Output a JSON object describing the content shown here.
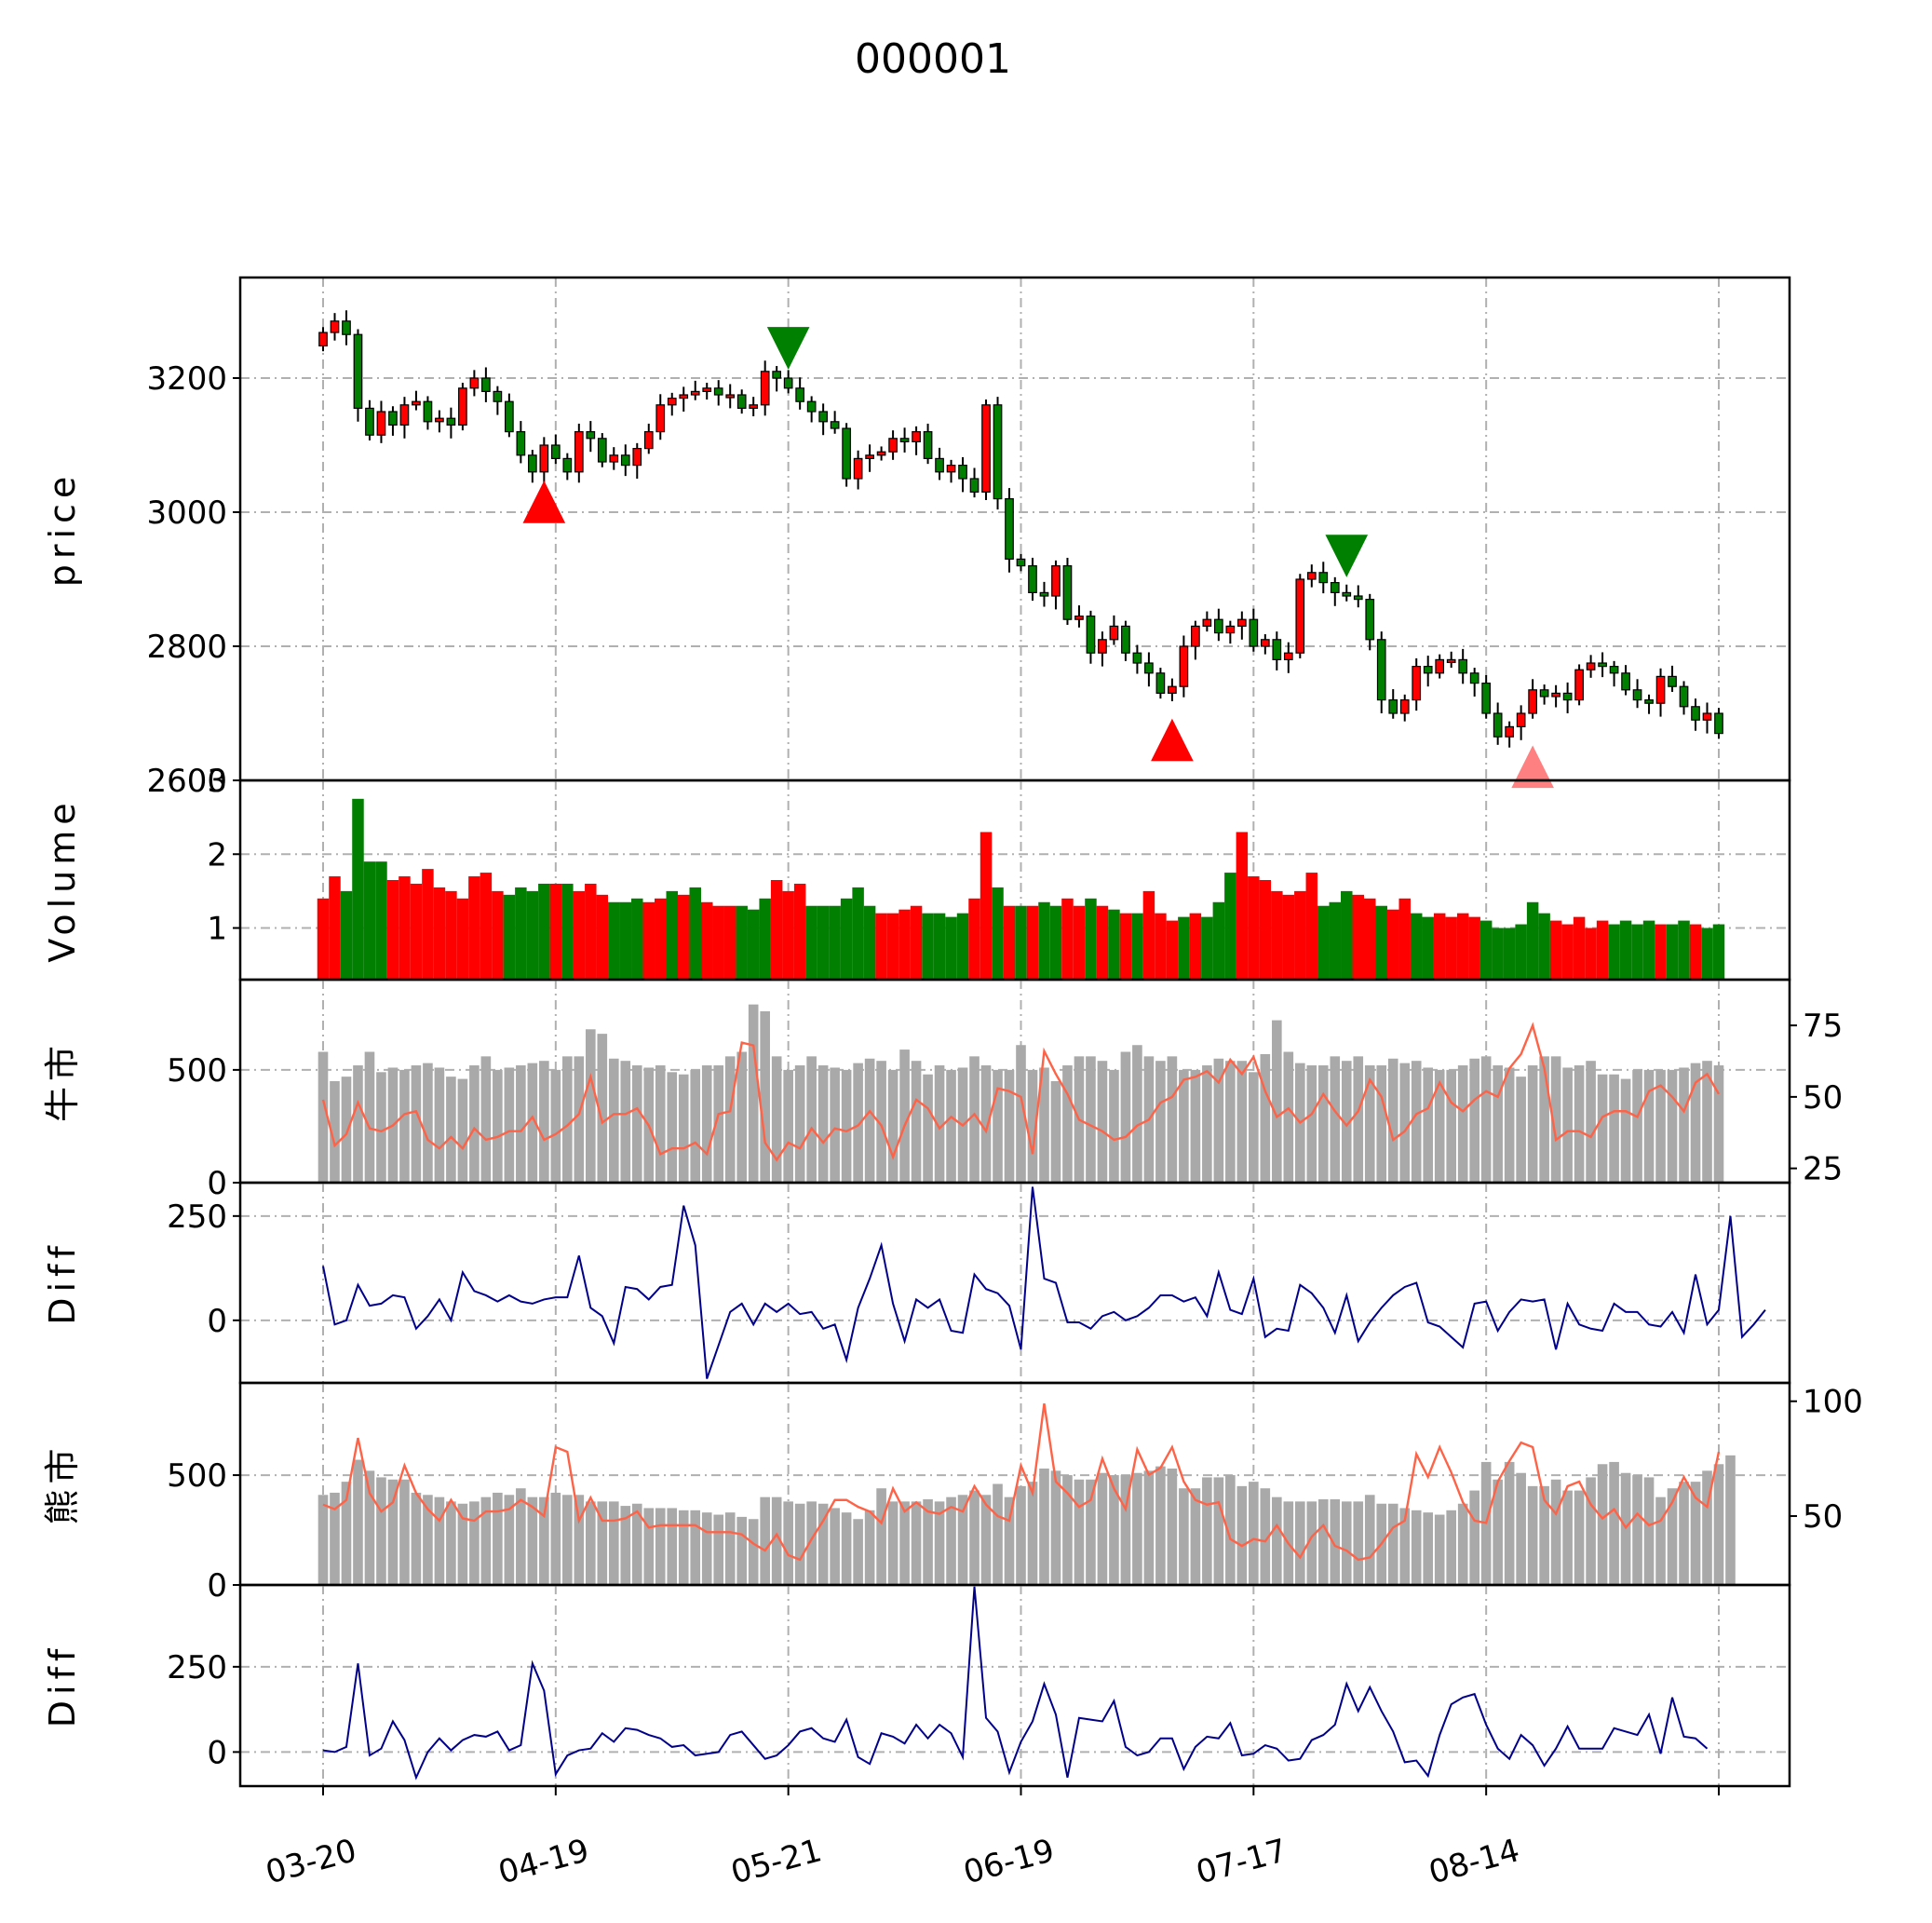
{
  "chart_data": {
    "type": "candlestick",
    "title": "000001",
    "x_tick_labels": [
      "03-20",
      "04-19",
      "05-21",
      "06-19",
      "07-17",
      "08-14"
    ],
    "x_tick_index": [
      0,
      20,
      40,
      60,
      80,
      100,
      120
    ],
    "n_days": 121,
    "colors": {
      "up": "#ff0000",
      "down": "#007f00",
      "gray_bar": "#a9a9a9",
      "ratio_line": "#ff6347",
      "diff_line": "#00008b"
    },
    "price": {
      "ylabel": "price",
      "ylim": [
        2600,
        3350
      ],
      "yticks": [
        2600,
        2800,
        3000,
        3200
      ],
      "close": [
        3268,
        3285,
        3265,
        3155,
        3115,
        3150,
        3130,
        3160,
        3165,
        3135,
        3140,
        3130,
        3185,
        3200,
        3180,
        3165,
        3120,
        3085,
        3060,
        3100,
        3080,
        3060,
        3120,
        3110,
        3075,
        3085,
        3070,
        3095,
        3120,
        3160,
        3170,
        3175,
        3180,
        3185,
        3175,
        3175,
        3155,
        3160,
        3210,
        3200,
        3185,
        3165,
        3150,
        3135,
        3125,
        3050,
        3080,
        3085,
        3090,
        3110,
        3105,
        3120,
        3080,
        3060,
        3070,
        3050,
        3030,
        3160,
        3020,
        2930,
        2920,
        2880,
        2875,
        2920,
        2840,
        2845,
        2790,
        2810,
        2830,
        2790,
        2775,
        2760,
        2730,
        2740,
        2800,
        2830,
        2840,
        2820,
        2830,
        2840,
        2800,
        2810,
        2780,
        2790,
        2900,
        2910,
        2895,
        2880,
        2875,
        2870,
        2810,
        2720,
        2700,
        2720,
        2770,
        2760,
        2780,
        2780,
        2760,
        2745,
        2700,
        2665,
        2680,
        2700,
        2735,
        2725,
        2730,
        2720,
        2765,
        2775,
        2770,
        2760,
        2735,
        2720,
        2715,
        2755,
        2740,
        2710,
        2690,
        2700,
        2670
      ],
      "volume_up_days": [
        0,
        1,
        6,
        7,
        8,
        9,
        10,
        11,
        12,
        13,
        14,
        15,
        20,
        22,
        23,
        24,
        28,
        29,
        31,
        33,
        34,
        35,
        39,
        40,
        41,
        48,
        49,
        50,
        51,
        56,
        57,
        59,
        61,
        64,
        65,
        67,
        69,
        71,
        72,
        73,
        75,
        79,
        80,
        81,
        82,
        83,
        84,
        85,
        89,
        90,
        92,
        93,
        96,
        97,
        98,
        99,
        106,
        107,
        108,
        109,
        110,
        115,
        118
      ]
    },
    "markers": [
      {
        "type": "buy",
        "day": 19,
        "price": 3015,
        "color": "#ff0000"
      },
      {
        "type": "sell",
        "day": 40,
        "price": 3245,
        "color": "#008000"
      },
      {
        "type": "buy",
        "day": 73,
        "price": 2660,
        "color": "#ff0000"
      },
      {
        "type": "sell",
        "day": 88,
        "price": 2935,
        "color": "#008000"
      },
      {
        "type": "buy",
        "day": 104,
        "price": 2620,
        "color": "#ff8080"
      }
    ],
    "volume": {
      "ylabel": "Volume",
      "ylim": [
        0.3,
        3.0
      ],
      "yticks": [
        1,
        2,
        3
      ],
      "values": [
        1.4,
        1.7,
        1.5,
        2.75,
        1.9,
        1.9,
        1.65,
        1.7,
        1.6,
        1.8,
        1.55,
        1.5,
        1.4,
        1.7,
        1.75,
        1.5,
        1.45,
        1.55,
        1.5,
        1.6,
        1.6,
        1.6,
        1.5,
        1.6,
        1.45,
        1.35,
        1.35,
        1.4,
        1.35,
        1.4,
        1.5,
        1.45,
        1.55,
        1.35,
        1.3,
        1.3,
        1.3,
        1.25,
        1.4,
        1.65,
        1.5,
        1.6,
        1.3,
        1.3,
        1.3,
        1.4,
        1.55,
        1.3,
        1.2,
        1.2,
        1.25,
        1.3,
        1.2,
        1.2,
        1.15,
        1.2,
        1.4,
        2.3,
        1.55,
        1.3,
        1.3,
        1.3,
        1.35,
        1.3,
        1.4,
        1.3,
        1.4,
        1.3,
        1.25,
        1.2,
        1.2,
        1.5,
        1.2,
        1.1,
        1.15,
        1.2,
        1.15,
        1.35,
        1.75,
        2.3,
        1.7,
        1.65,
        1.5,
        1.45,
        1.5,
        1.75,
        1.3,
        1.35,
        1.5,
        1.45,
        1.4,
        1.3,
        1.25,
        1.4,
        1.2,
        1.15,
        1.2,
        1.15,
        1.2,
        1.15,
        1.1,
        1.0,
        1.0,
        1.05,
        1.35,
        1.2,
        1.1,
        1.05,
        1.15,
        1.0,
        1.1,
        1.05,
        1.1,
        1.05,
        1.1,
        1.05,
        1.05,
        1.1,
        1.05,
        1.0,
        1.05
      ]
    },
    "bull": {
      "ylabel": "牛市",
      "ylim": [
        0,
        900
      ],
      "yticks": [
        0,
        500
      ],
      "right_ylim": [
        20,
        91
      ],
      "right_yticks": [
        25,
        50,
        75
      ],
      "bars": [
        580,
        450,
        470,
        520,
        580,
        490,
        510,
        500,
        520,
        530,
        510,
        470,
        460,
        520,
        560,
        500,
        510,
        520,
        530,
        540,
        500,
        560,
        560,
        680,
        660,
        550,
        540,
        520,
        510,
        520,
        490,
        480,
        500,
        520,
        520,
        560,
        580,
        790,
        760,
        560,
        500,
        520,
        560,
        520,
        510,
        500,
        530,
        550,
        540,
        500,
        590,
        540,
        480,
        520,
        500,
        510,
        560,
        520,
        500,
        500,
        610,
        500,
        510,
        450,
        520,
        560,
        560,
        540,
        500,
        580,
        610,
        560,
        540,
        560,
        500,
        500,
        520,
        550,
        540,
        540,
        490,
        570,
        720,
        580,
        530,
        520,
        520,
        560,
        540,
        560,
        520,
        520,
        550,
        530,
        540,
        510,
        500,
        500,
        520,
        550,
        560,
        520,
        510,
        470,
        520,
        560,
        560,
        510,
        520,
        540,
        480,
        480,
        460,
        500,
        500,
        500,
        500,
        510,
        530,
        540,
        520
      ],
      "ratio": [
        49,
        33,
        37,
        48,
        39,
        38,
        40,
        44,
        45,
        35,
        32,
        36,
        32,
        39,
        35,
        36,
        38,
        38,
        43,
        35,
        37,
        40,
        44,
        57,
        41,
        44,
        44,
        46,
        40,
        30,
        32,
        32,
        34,
        30,
        44,
        45,
        69,
        68,
        34,
        28,
        34,
        32,
        39,
        34,
        39,
        38,
        40,
        45,
        40,
        29,
        40,
        49,
        46,
        39,
        43,
        40,
        44,
        38,
        53,
        52,
        50,
        30,
        66,
        58,
        51,
        42,
        40,
        38,
        35,
        36,
        40,
        42,
        48,
        50,
        56,
        57,
        59,
        55,
        63,
        58,
        64,
        52,
        43,
        46,
        41,
        44,
        51,
        45,
        40,
        45,
        56,
        50,
        35,
        38,
        44,
        46,
        55,
        48,
        45,
        49,
        52,
        50,
        60,
        65,
        75,
        60,
        35,
        38,
        38,
        36,
        43,
        45,
        45,
        43,
        52,
        54,
        50,
        45,
        55,
        58,
        51
      ]
    },
    "bull_diff": {
      "ylabel": "Diff",
      "ylim": [
        -150,
        330
      ],
      "yticks": [
        0,
        250
      ],
      "values": [
        130,
        -10,
        0,
        85,
        35,
        40,
        60,
        55,
        -20,
        10,
        50,
        0,
        115,
        70,
        60,
        45,
        60,
        45,
        40,
        50,
        55,
        55,
        155,
        30,
        10,
        -55,
        80,
        75,
        50,
        80,
        85,
        275,
        180,
        -140,
        -60,
        20,
        40,
        -10,
        40,
        20,
        40,
        15,
        20,
        -20,
        -10,
        -95,
        30,
        100,
        180,
        40,
        -50,
        50,
        30,
        50,
        -25,
        -30,
        110,
        75,
        65,
        35,
        -70,
        320,
        100,
        90,
        -5,
        -5,
        -20,
        10,
        20,
        0,
        10,
        30,
        60,
        60,
        45,
        55,
        10,
        115,
        25,
        15,
        100,
        -40,
        -20,
        -25,
        85,
        65,
        30,
        -30,
        60,
        -50,
        -5,
        30,
        60,
        80,
        90,
        -5,
        -15,
        -40,
        -65,
        40,
        45,
        -25,
        20,
        50,
        45,
        50,
        -70,
        40,
        -10,
        -20,
        -25,
        40,
        20,
        20,
        -10,
        -15,
        20,
        -30,
        110,
        -10,
        25,
        250,
        -40,
        -10,
        25
      ]
    },
    "bear": {
      "ylabel": "熊市",
      "ylim": [
        0,
        920
      ],
      "yticks": [
        0,
        500
      ],
      "right_ylim": [
        20,
        108
      ],
      "right_yticks": [
        50,
        100
      ],
      "bars": [
        410,
        420,
        470,
        570,
        520,
        490,
        480,
        480,
        420,
        410,
        400,
        380,
        370,
        380,
        400,
        420,
        410,
        440,
        400,
        400,
        420,
        410,
        410,
        380,
        380,
        380,
        360,
        370,
        350,
        350,
        350,
        340,
        340,
        330,
        320,
        330,
        310,
        300,
        400,
        400,
        380,
        370,
        380,
        370,
        350,
        330,
        300,
        340,
        440,
        380,
        380,
        380,
        390,
        380,
        400,
        410,
        430,
        410,
        460,
        400,
        450,
        470,
        530,
        520,
        500,
        480,
        480,
        510,
        500,
        500,
        510,
        520,
        540,
        530,
        440,
        440,
        490,
        490,
        500,
        450,
        470,
        440,
        400,
        380,
        380,
        380,
        390,
        390,
        380,
        380,
        410,
        370,
        370,
        350,
        340,
        330,
        320,
        340,
        370,
        430,
        560,
        480,
        560,
        510,
        450,
        450,
        480,
        430,
        430,
        490,
        550,
        560,
        510,
        500,
        490,
        400,
        440,
        470,
        470,
        520,
        550,
        590
      ],
      "ratio": [
        55,
        53,
        57,
        84,
        60,
        52,
        56,
        72,
        60,
        53,
        48,
        57,
        49,
        48,
        52,
        52,
        53,
        57,
        54,
        50,
        80,
        78,
        48,
        58,
        48,
        48,
        49,
        52,
        45,
        46,
        46,
        46,
        46,
        43,
        43,
        43,
        42,
        38,
        35,
        42,
        33,
        31,
        40,
        48,
        57,
        57,
        54,
        52,
        47,
        62,
        52,
        56,
        52,
        51,
        54,
        52,
        63,
        55,
        50,
        48,
        72,
        60,
        99,
        65,
        60,
        54,
        57,
        75,
        62,
        53,
        79,
        68,
        71,
        80,
        65,
        57,
        55,
        56,
        40,
        37,
        40,
        39,
        46,
        38,
        32,
        41,
        46,
        37,
        35,
        31,
        32,
        38,
        45,
        48,
        77,
        67,
        80,
        69,
        56,
        48,
        47,
        65,
        74,
        82,
        80,
        57,
        51,
        63,
        65,
        55,
        49,
        53,
        45,
        51,
        46,
        48,
        56,
        67,
        58,
        54,
        78
      ]
    },
    "bear_diff": {
      "ylabel": "Diff",
      "ylim": [
        -100,
        490
      ],
      "yticks": [
        0,
        250
      ],
      "values": [
        5,
        0,
        15,
        260,
        -10,
        10,
        90,
        35,
        -75,
        0,
        40,
        5,
        35,
        50,
        45,
        60,
        5,
        20,
        260,
        180,
        -65,
        -10,
        5,
        10,
        55,
        30,
        70,
        65,
        50,
        40,
        15,
        20,
        -10,
        -5,
        0,
        50,
        60,
        20,
        -20,
        -10,
        20,
        60,
        70,
        40,
        30,
        95,
        -15,
        -35,
        55,
        45,
        25,
        80,
        40,
        80,
        55,
        -15,
        485,
        100,
        60,
        -60,
        30,
        90,
        200,
        110,
        -75,
        100,
        95,
        90,
        150,
        15,
        -10,
        0,
        40,
        40,
        -50,
        15,
        45,
        40,
        85,
        -10,
        -5,
        20,
        10,
        -25,
        -20,
        35,
        50,
        80,
        200,
        120,
        190,
        120,
        60,
        -30,
        -25,
        -70,
        50,
        140,
        160,
        170,
        80,
        10,
        -20,
        50,
        20,
        -40,
        10,
        75,
        10,
        10,
        10,
        70,
        60,
        50,
        110,
        -5,
        160,
        45,
        40,
        10
      ]
    }
  }
}
